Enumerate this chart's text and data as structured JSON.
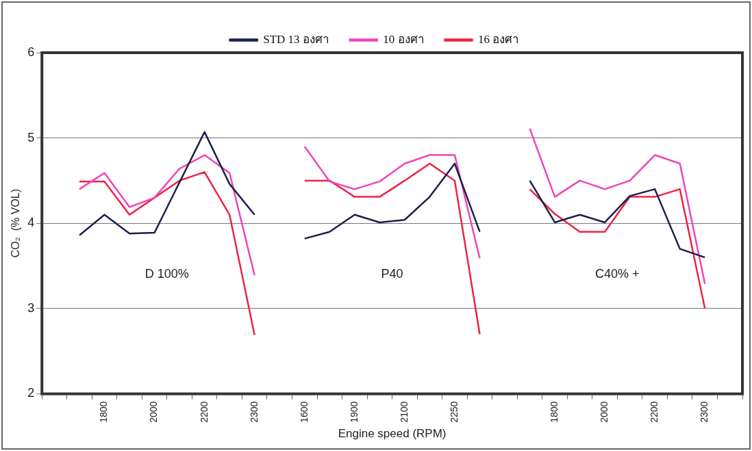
{
  "chart_data": {
    "type": "line",
    "ylabel": "CO₂  (% VOL)",
    "xlabel": "Engine speed (RPM)",
    "categories": [
      null,
      null,
      "1800",
      null,
      "2000",
      null,
      "2200",
      null,
      "2300",
      null,
      "1600",
      null,
      "1900",
      null,
      "2100",
      null,
      "2250",
      null,
      null,
      null,
      "1800",
      null,
      "2000",
      null,
      "2200",
      null,
      "2300",
      null
    ],
    "series": [
      {
        "name": "STD 13 องศา",
        "color": "#1a1f4a",
        "values": [
          null,
          3.86,
          4.1,
          3.88,
          3.89,
          4.48,
          5.07,
          4.46,
          4.1,
          null,
          3.82,
          3.9,
          4.1,
          4.01,
          4.04,
          4.31,
          4.7,
          3.9,
          null,
          4.5,
          4.01,
          4.1,
          4.01,
          4.32,
          4.4,
          3.7,
          3.6,
          null
        ]
      },
      {
        "name": "10 องศา",
        "color": "#ee44bb",
        "values": [
          null,
          4.4,
          4.59,
          4.19,
          4.3,
          4.64,
          4.8,
          4.59,
          3.39,
          null,
          4.9,
          4.49,
          4.4,
          4.49,
          4.7,
          4.8,
          4.8,
          3.59,
          null,
          5.11,
          4.31,
          4.5,
          4.4,
          4.5,
          4.8,
          4.7,
          3.29,
          null
        ]
      },
      {
        "name": "16 องศา",
        "color": "#ee2244",
        "values": [
          null,
          4.49,
          4.49,
          4.1,
          4.3,
          4.5,
          4.6,
          4.1,
          2.69,
          null,
          4.5,
          4.5,
          4.31,
          4.31,
          4.5,
          4.7,
          4.5,
          2.7,
          null,
          4.4,
          4.11,
          3.9,
          3.9,
          4.31,
          4.31,
          4.4,
          3.0,
          null
        ]
      }
    ],
    "ylim": [
      2,
      6
    ],
    "yticks": [
      2,
      3,
      4,
      5,
      6
    ],
    "grid": "y",
    "legend": "top",
    "marker": "none",
    "line_style": "solid",
    "annotations": [
      "D 100%",
      "P40",
      "C40% +"
    ]
  }
}
